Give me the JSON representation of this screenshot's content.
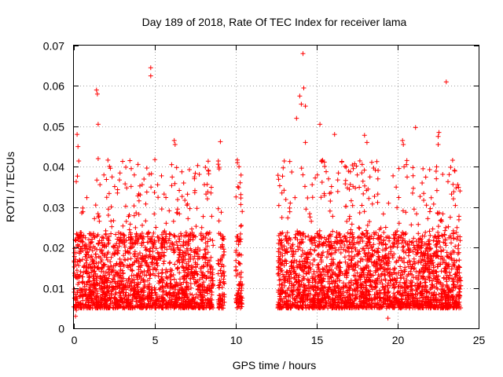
{
  "chart_data": {
    "type": "scatter",
    "title": "Day 189 of 2018, Rate Of TEC Index for receiver lama",
    "xlabel": "GPS time / hours",
    "ylabel": "ROTI / TECUs",
    "xlim": [
      0,
      25
    ],
    "ylim": [
      0,
      0.07
    ],
    "x_ticks": [
      0,
      5,
      10,
      15,
      20,
      25
    ],
    "x_tick_labels": [
      "0",
      "5",
      "10",
      "15",
      "20",
      "25"
    ],
    "y_ticks": [
      0,
      0.01,
      0.02,
      0.03,
      0.04,
      0.05,
      0.06,
      0.07
    ],
    "y_tick_labels": [
      "0",
      "0.01",
      "0.02",
      "0.03",
      "0.04",
      "0.05",
      "0.06",
      "0.07"
    ],
    "grid": true,
    "marker": "+",
    "series": [
      {
        "name": "ROTI",
        "color": "#ff0000",
        "coverage_segments": [
          [
            0.0,
            8.6
          ],
          [
            8.9,
            9.3
          ],
          [
            10.0,
            10.4
          ],
          [
            12.6,
            23.9
          ]
        ],
        "typical_range": [
          0.005,
          0.03
        ],
        "points": [
          [
            0.1,
            0.003
          ],
          [
            0.15,
            0.0045
          ],
          [
            0.2,
            0.048
          ],
          [
            0.25,
            0.045
          ],
          [
            1.4,
            0.059
          ],
          [
            1.45,
            0.058
          ],
          [
            1.5,
            0.0505
          ],
          [
            1.5,
            0.042
          ],
          [
            4.75,
            0.0645
          ],
          [
            4.75,
            0.0625
          ],
          [
            6.2,
            0.0465
          ],
          [
            6.25,
            0.0455
          ],
          [
            9.05,
            0.0462
          ],
          [
            10.1,
            0.041
          ],
          [
            10.2,
            0.04
          ],
          [
            13.75,
            0.052
          ],
          [
            13.95,
            0.0575
          ],
          [
            14.05,
            0.0555
          ],
          [
            14.15,
            0.068
          ],
          [
            14.2,
            0.0595
          ],
          [
            14.3,
            0.046
          ],
          [
            14.3,
            0.055
          ],
          [
            15.2,
            0.0505
          ],
          [
            16.1,
            0.048
          ],
          [
            17.95,
            0.0478
          ],
          [
            18.1,
            0.046
          ],
          [
            19.4,
            0.0025
          ],
          [
            20.3,
            0.0465
          ],
          [
            20.35,
            0.0455
          ],
          [
            21.1,
            0.0497
          ],
          [
            22.55,
            0.0485
          ],
          [
            22.5,
            0.0475
          ],
          [
            22.5,
            0.0455
          ],
          [
            23.0,
            0.061
          ],
          [
            23.85,
            0.034
          ]
        ]
      }
    ]
  }
}
